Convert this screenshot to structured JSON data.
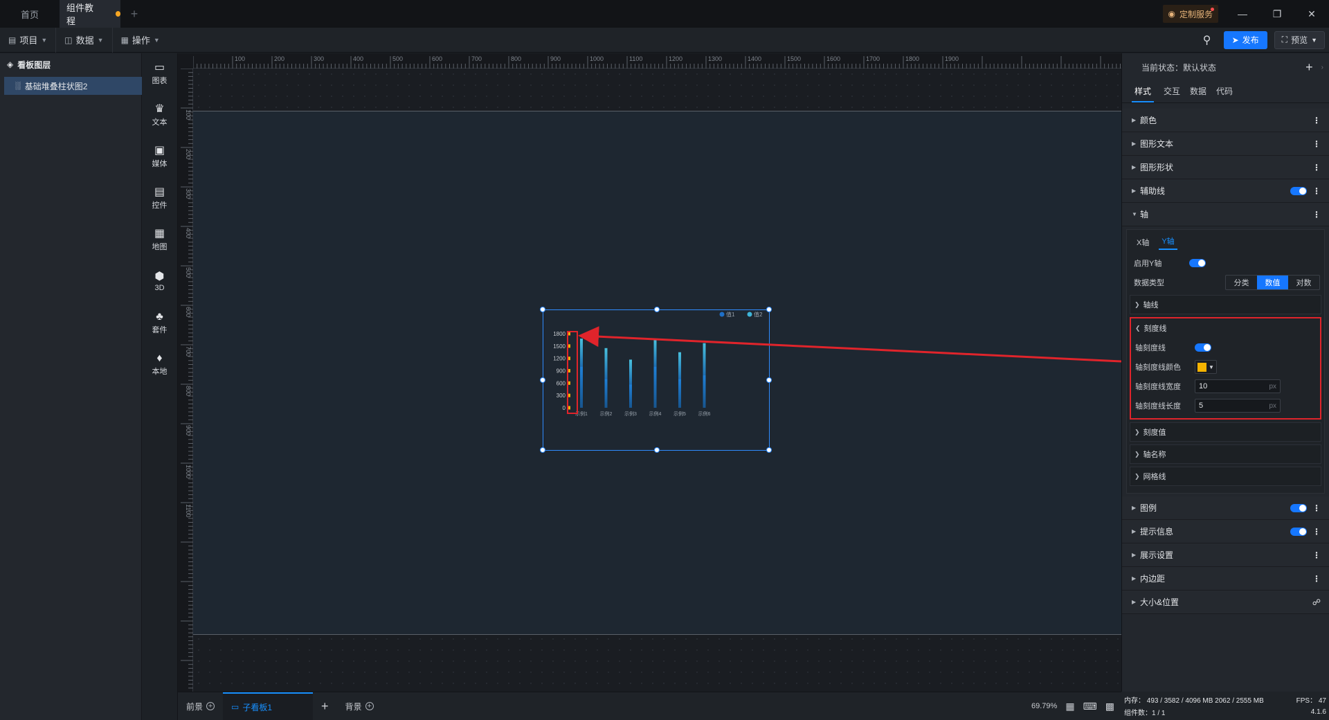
{
  "titlebar": {
    "tabs": [
      {
        "label": "首页"
      },
      {
        "label": "组件教程"
      }
    ],
    "custom_service": "定制服务"
  },
  "toolbar": {
    "project": "项目",
    "data": "数据",
    "operate": "操作",
    "publish": "发布",
    "preview": "预览"
  },
  "layers": {
    "title": "看板图层",
    "items": [
      {
        "label": "基础堆叠柱状图2"
      }
    ]
  },
  "components": [
    {
      "label": "图表",
      "icon": "chart-icon"
    },
    {
      "label": "文本",
      "icon": "text-icon"
    },
    {
      "label": "媒体",
      "icon": "media-icon"
    },
    {
      "label": "控件",
      "icon": "control-icon"
    },
    {
      "label": "地图",
      "icon": "map-icon"
    },
    {
      "label": "3D",
      "icon": "cube-icon"
    },
    {
      "label": "套件",
      "icon": "kit-icon"
    },
    {
      "label": "本地",
      "icon": "puzzle-icon"
    }
  ],
  "ruler": {
    "top": [
      "100",
      "200",
      "300",
      "400",
      "500",
      "600",
      "700",
      "800",
      "900",
      "1000",
      "1100",
      "1200",
      "1300",
      "1400",
      "1500",
      "1600",
      "1700",
      "1800",
      "1900"
    ],
    "left": [
      "100",
      "200",
      "300",
      "400",
      "500",
      "600",
      "700",
      "800",
      "900",
      "1000",
      "1100"
    ]
  },
  "chart_data": {
    "type": "bar",
    "categories": [
      "示例1",
      "示例2",
      "示例3",
      "示例4",
      "示例5",
      "示例6"
    ],
    "series": [
      {
        "name": "值1",
        "values": [
          1000,
          700,
          570,
          1000,
          700,
          790
        ]
      },
      {
        "name": "值2",
        "values": [
          680,
          750,
          600,
          650,
          650,
          780
        ]
      }
    ],
    "yticks": [
      "1800",
      "1500",
      "1200",
      "900",
      "600",
      "300",
      "0"
    ],
    "ylim": [
      0,
      1800
    ],
    "legend": "top-right",
    "tick_color": "#f5b301"
  },
  "bottombar": {
    "tabs": [
      {
        "label": "前景"
      },
      {
        "label": "子看板1"
      },
      {
        "label": "背景"
      }
    ],
    "zoom": "69.79%"
  },
  "props": {
    "state_label": "当前状态：默认状态",
    "tabs": [
      "样式",
      "交互",
      "数据",
      "代码"
    ],
    "sections_top": [
      "颜色",
      "图形文本",
      "图形形状",
      "辅助线"
    ],
    "axis_title": "轴",
    "axis_tabs": [
      "X轴",
      "Y轴"
    ],
    "enable_y": "启用Y轴",
    "data_type_label": "数据类型",
    "data_types": [
      "分类",
      "数值",
      "对数"
    ],
    "axis_line": "轴线",
    "tick_group": {
      "title": "刻度线",
      "tick_line": "轴刻度线",
      "tick_color": "轴刻度线颜色",
      "tick_width": "轴刻度线宽度",
      "tick_width_value": "10",
      "tick_length": "轴刻度线长度",
      "tick_length_value": "5",
      "unit": "px"
    },
    "tick_value": "刻度值",
    "axis_name": "轴名称",
    "grid_line": "网格线",
    "sections_bottom": [
      "图例",
      "提示信息",
      "展示设置",
      "内边距",
      "大小&位置"
    ]
  },
  "status": {
    "memory": "内存：  493 / 3582 / 4096 MB  2062 / 2555 MB",
    "fps": "FPS：  47",
    "count": "组件数：1 / 1",
    "version": "4.1.6"
  }
}
